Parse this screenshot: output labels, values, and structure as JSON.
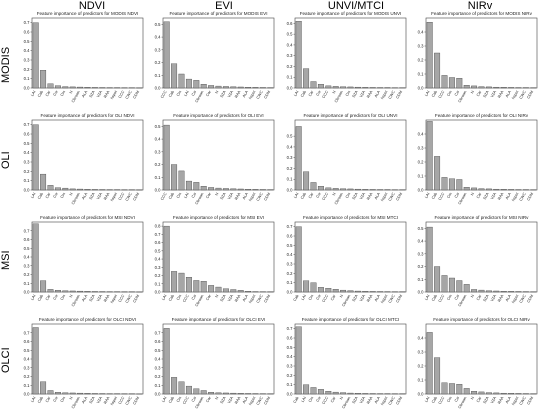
{
  "column_headers": [
    "NDVI",
    "EVI",
    "UNVI/MTCI",
    "NIRv"
  ],
  "row_headers": [
    "MODIS",
    "OLI",
    "MSI",
    "OLCI"
  ],
  "colors": {
    "bar": "#a6a6a6",
    "bar_stroke": "#3a3a3a",
    "axis": "#444444"
  },
  "chart_data": [
    {
      "type": "bar",
      "title": "Feature importance of predictors for MODIS NDVI",
      "categories": [
        "LAI",
        "Cab",
        "Car",
        "Cw",
        "Cm",
        "N",
        "Cbrown",
        "ALA",
        "SZA",
        "VZA",
        "RAA",
        "hspot",
        "CCC",
        "CWC",
        "CDM"
      ],
      "values": [
        0.7,
        0.19,
        0.045,
        0.025,
        0.015,
        0.012,
        0.01,
        0.008,
        0.006,
        0.005,
        0.004,
        0.004,
        0.003,
        0.003,
        0.002
      ],
      "ylim": [
        0,
        0.75
      ],
      "yticks": [
        0,
        0.1,
        0.2,
        0.3,
        0.4,
        0.5,
        0.6,
        0.7
      ]
    },
    {
      "type": "bar",
      "title": "Feature importance of predictors for MODIS EVI",
      "categories": [
        "CCC",
        "Cab",
        "Cm",
        "LAI",
        "Cw",
        "Cbrown",
        "Car",
        "N",
        "SZA",
        "VZA",
        "RAA",
        "ALA",
        "hspot",
        "CWC",
        "CDM"
      ],
      "values": [
        0.52,
        0.19,
        0.11,
        0.07,
        0.06,
        0.03,
        0.02,
        0.015,
        0.012,
        0.01,
        0.008,
        0.006,
        0.005,
        0.004,
        0.003
      ],
      "ylim": [
        0,
        0.55
      ],
      "yticks": [
        0,
        0.1,
        0.2,
        0.3,
        0.4,
        0.5
      ]
    },
    {
      "type": "bar",
      "title": "Feature importance of predictors for MODIS UNVI",
      "categories": [
        "LAI",
        "Cab",
        "Car",
        "Cw",
        "CCC",
        "N",
        "Cbrown",
        "Cm",
        "SZA",
        "VZA",
        "RAA",
        "ALA",
        "hspot",
        "CWC",
        "CDM"
      ],
      "values": [
        0.62,
        0.18,
        0.06,
        0.035,
        0.02,
        0.015,
        0.012,
        0.01,
        0.008,
        0.006,
        0.005,
        0.004,
        0.004,
        0.003,
        0.003
      ],
      "ylim": [
        0,
        0.65
      ],
      "yticks": [
        0,
        0.1,
        0.2,
        0.3,
        0.4,
        0.5,
        0.6
      ]
    },
    {
      "type": "bar",
      "title": "Feature importance of predictors for MODIS NIRv",
      "categories": [
        "LAI",
        "Cab",
        "CCC",
        "Cm",
        "Cw",
        "Cbrown",
        "N",
        "Car",
        "SZA",
        "VZA",
        "RAA",
        "ALA",
        "hspot",
        "CWC",
        "CDM"
      ],
      "values": [
        0.47,
        0.25,
        0.09,
        0.075,
        0.07,
        0.02,
        0.015,
        0.01,
        0.008,
        0.006,
        0.005,
        0.004,
        0.003,
        0.003,
        0.002
      ],
      "ylim": [
        0,
        0.5
      ],
      "yticks": [
        0,
        0.1,
        0.2,
        0.3,
        0.4
      ]
    },
    {
      "type": "bar",
      "title": "Feature importance of predictors for OLI NDVI",
      "categories": [
        "LAI",
        "Cab",
        "Car",
        "Cw",
        "Cm",
        "N",
        "Cbrown",
        "ALA",
        "SZA",
        "VZA",
        "RAA",
        "hspot",
        "CCC",
        "CWC",
        "CDM"
      ],
      "values": [
        0.7,
        0.17,
        0.05,
        0.025,
        0.02,
        0.012,
        0.01,
        0.008,
        0.006,
        0.005,
        0.004,
        0.004,
        0.003,
        0.003,
        0.002
      ],
      "ylim": [
        0,
        0.75
      ],
      "yticks": [
        0,
        0.1,
        0.2,
        0.3,
        0.4,
        0.5,
        0.6,
        0.7
      ]
    },
    {
      "type": "bar",
      "title": "Feature importance of predictors for OLI EVI",
      "categories": [
        "CCC",
        "Cab",
        "Cm",
        "LAI",
        "Cw",
        "Cbrown",
        "Car",
        "N",
        "SZA",
        "VZA",
        "RAA",
        "ALA",
        "hspot",
        "CWC",
        "CDM"
      ],
      "values": [
        0.51,
        0.2,
        0.15,
        0.07,
        0.06,
        0.03,
        0.02,
        0.015,
        0.012,
        0.01,
        0.008,
        0.006,
        0.005,
        0.004,
        0.003
      ],
      "ylim": [
        0,
        0.55
      ],
      "yticks": [
        0,
        0.1,
        0.2,
        0.3,
        0.4,
        0.5
      ]
    },
    {
      "type": "bar",
      "title": "Feature importance of predictors for OLI UNVI",
      "categories": [
        "LAI",
        "Cab",
        "Car",
        "Cw",
        "CCC",
        "N",
        "Cbrown",
        "Cm",
        "SZA",
        "VZA",
        "RAA",
        "ALA",
        "hspot",
        "CWC",
        "CDM"
      ],
      "values": [
        0.59,
        0.17,
        0.07,
        0.035,
        0.02,
        0.015,
        0.012,
        0.01,
        0.008,
        0.006,
        0.005,
        0.004,
        0.004,
        0.003,
        0.003
      ],
      "ylim": [
        0,
        0.65
      ],
      "yticks": [
        0,
        0.1,
        0.2,
        0.3,
        0.4,
        0.5
      ]
    },
    {
      "type": "bar",
      "title": "Feature importance of predictors for OLI NIRv",
      "categories": [
        "LAI",
        "Cab",
        "CCC",
        "Cm",
        "Cw",
        "Cbrown",
        "N",
        "Car",
        "SZA",
        "VZA",
        "RAA",
        "ALA",
        "hspot",
        "CWC",
        "CDM"
      ],
      "values": [
        0.49,
        0.24,
        0.09,
        0.08,
        0.075,
        0.02,
        0.015,
        0.01,
        0.008,
        0.006,
        0.005,
        0.004,
        0.003,
        0.003,
        0.002
      ],
      "ylim": [
        0,
        0.5
      ],
      "yticks": [
        0,
        0.1,
        0.2,
        0.3,
        0.4
      ]
    },
    {
      "type": "bar",
      "title": "Feature importance of predictors for MSI NDVI",
      "categories": [
        "LAI",
        "Cab",
        "Car",
        "Cw",
        "Cm",
        "N",
        "Cbrown",
        "ALA",
        "SZA",
        "VZA",
        "RAA",
        "hspot",
        "CCC",
        "CWC",
        "CDM"
      ],
      "values": [
        0.78,
        0.13,
        0.03,
        0.02,
        0.015,
        0.012,
        0.01,
        0.008,
        0.006,
        0.005,
        0.004,
        0.004,
        0.003,
        0.003,
        0.002
      ],
      "ylim": [
        0,
        0.8
      ],
      "yticks": [
        0,
        0.1,
        0.2,
        0.3,
        0.4,
        0.5,
        0.6,
        0.7
      ]
    },
    {
      "type": "bar",
      "title": "Feature importance of predictors for MSI EVI",
      "categories": [
        "LAI",
        "Cab",
        "Cm",
        "CCC",
        "Cw",
        "Cbrown",
        "Car",
        "N",
        "SZA",
        "VZA",
        "RAA",
        "ALA",
        "hspot",
        "CWC",
        "CDM"
      ],
      "values": [
        0.8,
        0.25,
        0.23,
        0.18,
        0.14,
        0.13,
        0.08,
        0.06,
        0.04,
        0.03,
        0.02,
        0.01,
        0.005,
        0.004,
        0.003
      ],
      "ylim": [
        0,
        0.85
      ],
      "yticks": [
        0,
        0.1,
        0.2,
        0.3,
        0.4,
        0.5,
        0.6,
        0.7,
        0.8
      ]
    },
    {
      "type": "bar",
      "title": "Feature importance of predictors for MSI MTCI",
      "categories": [
        "Cab",
        "LAI",
        "Cm",
        "Cw",
        "CCC",
        "Car",
        "N",
        "Cbrown",
        "SZA",
        "VZA",
        "RAA",
        "ALA",
        "hspot",
        "CWC",
        "CDM"
      ],
      "values": [
        0.7,
        0.12,
        0.1,
        0.05,
        0.04,
        0.03,
        0.02,
        0.015,
        0.01,
        0.008,
        0.006,
        0.005,
        0.004,
        0.003,
        0.003
      ],
      "ylim": [
        0,
        0.75
      ],
      "yticks": [
        0,
        0.1,
        0.2,
        0.3,
        0.4,
        0.5,
        0.6,
        0.7
      ]
    },
    {
      "type": "bar",
      "title": "Feature importance of predictors for MSI NIRv",
      "categories": [
        "LAI",
        "Cab",
        "CCC",
        "Cm",
        "Cw",
        "Cbrown",
        "N",
        "Car",
        "SZA",
        "VZA",
        "RAA",
        "ALA",
        "hspot",
        "CWC",
        "CDM"
      ],
      "values": [
        0.51,
        0.2,
        0.13,
        0.11,
        0.09,
        0.06,
        0.02,
        0.015,
        0.01,
        0.008,
        0.006,
        0.005,
        0.004,
        0.003,
        0.002
      ],
      "ylim": [
        0,
        0.55
      ],
      "yticks": [
        0,
        0.1,
        0.2,
        0.3,
        0.4,
        0.5
      ]
    },
    {
      "type": "bar",
      "title": "Feature importance of predictors for OLCI NDVI",
      "categories": [
        "LAI",
        "Cab",
        "Car",
        "Cw",
        "Cm",
        "N",
        "Cbrown",
        "ALA",
        "SZA",
        "VZA",
        "RAA",
        "hspot",
        "CCC",
        "CWC",
        "CDM"
      ],
      "values": [
        0.76,
        0.14,
        0.04,
        0.02,
        0.015,
        0.012,
        0.01,
        0.008,
        0.006,
        0.005,
        0.004,
        0.004,
        0.003,
        0.003,
        0.002
      ],
      "ylim": [
        0,
        0.8
      ],
      "yticks": [
        0,
        0.1,
        0.2,
        0.3,
        0.4,
        0.5,
        0.6,
        0.7
      ]
    },
    {
      "type": "bar",
      "title": "Feature importance of predictors for OLCI EVI",
      "categories": [
        "LAI",
        "Cab",
        "Cm",
        "CCC",
        "Cw",
        "Cbrown",
        "Car",
        "N",
        "SZA",
        "VZA",
        "RAA",
        "ALA",
        "hspot",
        "CWC",
        "CDM"
      ],
      "values": [
        0.75,
        0.19,
        0.14,
        0.09,
        0.06,
        0.04,
        0.02,
        0.015,
        0.012,
        0.01,
        0.008,
        0.006,
        0.005,
        0.004,
        0.003
      ],
      "ylim": [
        0,
        0.8
      ],
      "yticks": [
        0,
        0.1,
        0.2,
        0.3,
        0.4,
        0.5,
        0.6,
        0.7
      ]
    },
    {
      "type": "bar",
      "title": "Feature importance of predictors for OLCI MTCI",
      "categories": [
        "Cab",
        "LAI",
        "Cm",
        "Cw",
        "CCC",
        "Car",
        "N",
        "Cbrown",
        "SZA",
        "VZA",
        "RAA",
        "ALA",
        "hspot",
        "CWC",
        "CDM"
      ],
      "values": [
        0.72,
        0.1,
        0.07,
        0.05,
        0.03,
        0.02,
        0.015,
        0.01,
        0.008,
        0.006,
        0.005,
        0.004,
        0.004,
        0.003,
        0.003
      ],
      "ylim": [
        0,
        0.75
      ],
      "yticks": [
        0,
        0.1,
        0.2,
        0.3,
        0.4,
        0.5,
        0.6,
        0.7
      ]
    },
    {
      "type": "bar",
      "title": "Feature importance of predictors for OLCI NIRv",
      "categories": [
        "LAI",
        "Cab",
        "CCC",
        "Cm",
        "Cw",
        "Cbrown",
        "N",
        "Car",
        "SZA",
        "VZA",
        "RAA",
        "ALA",
        "hspot",
        "CWC",
        "CDM"
      ],
      "values": [
        0.44,
        0.26,
        0.08,
        0.075,
        0.07,
        0.04,
        0.02,
        0.015,
        0.01,
        0.008,
        0.006,
        0.005,
        0.004,
        0.003,
        0.002
      ],
      "ylim": [
        0,
        0.5
      ],
      "yticks": [
        0,
        0.1,
        0.2,
        0.3,
        0.4
      ]
    }
  ]
}
